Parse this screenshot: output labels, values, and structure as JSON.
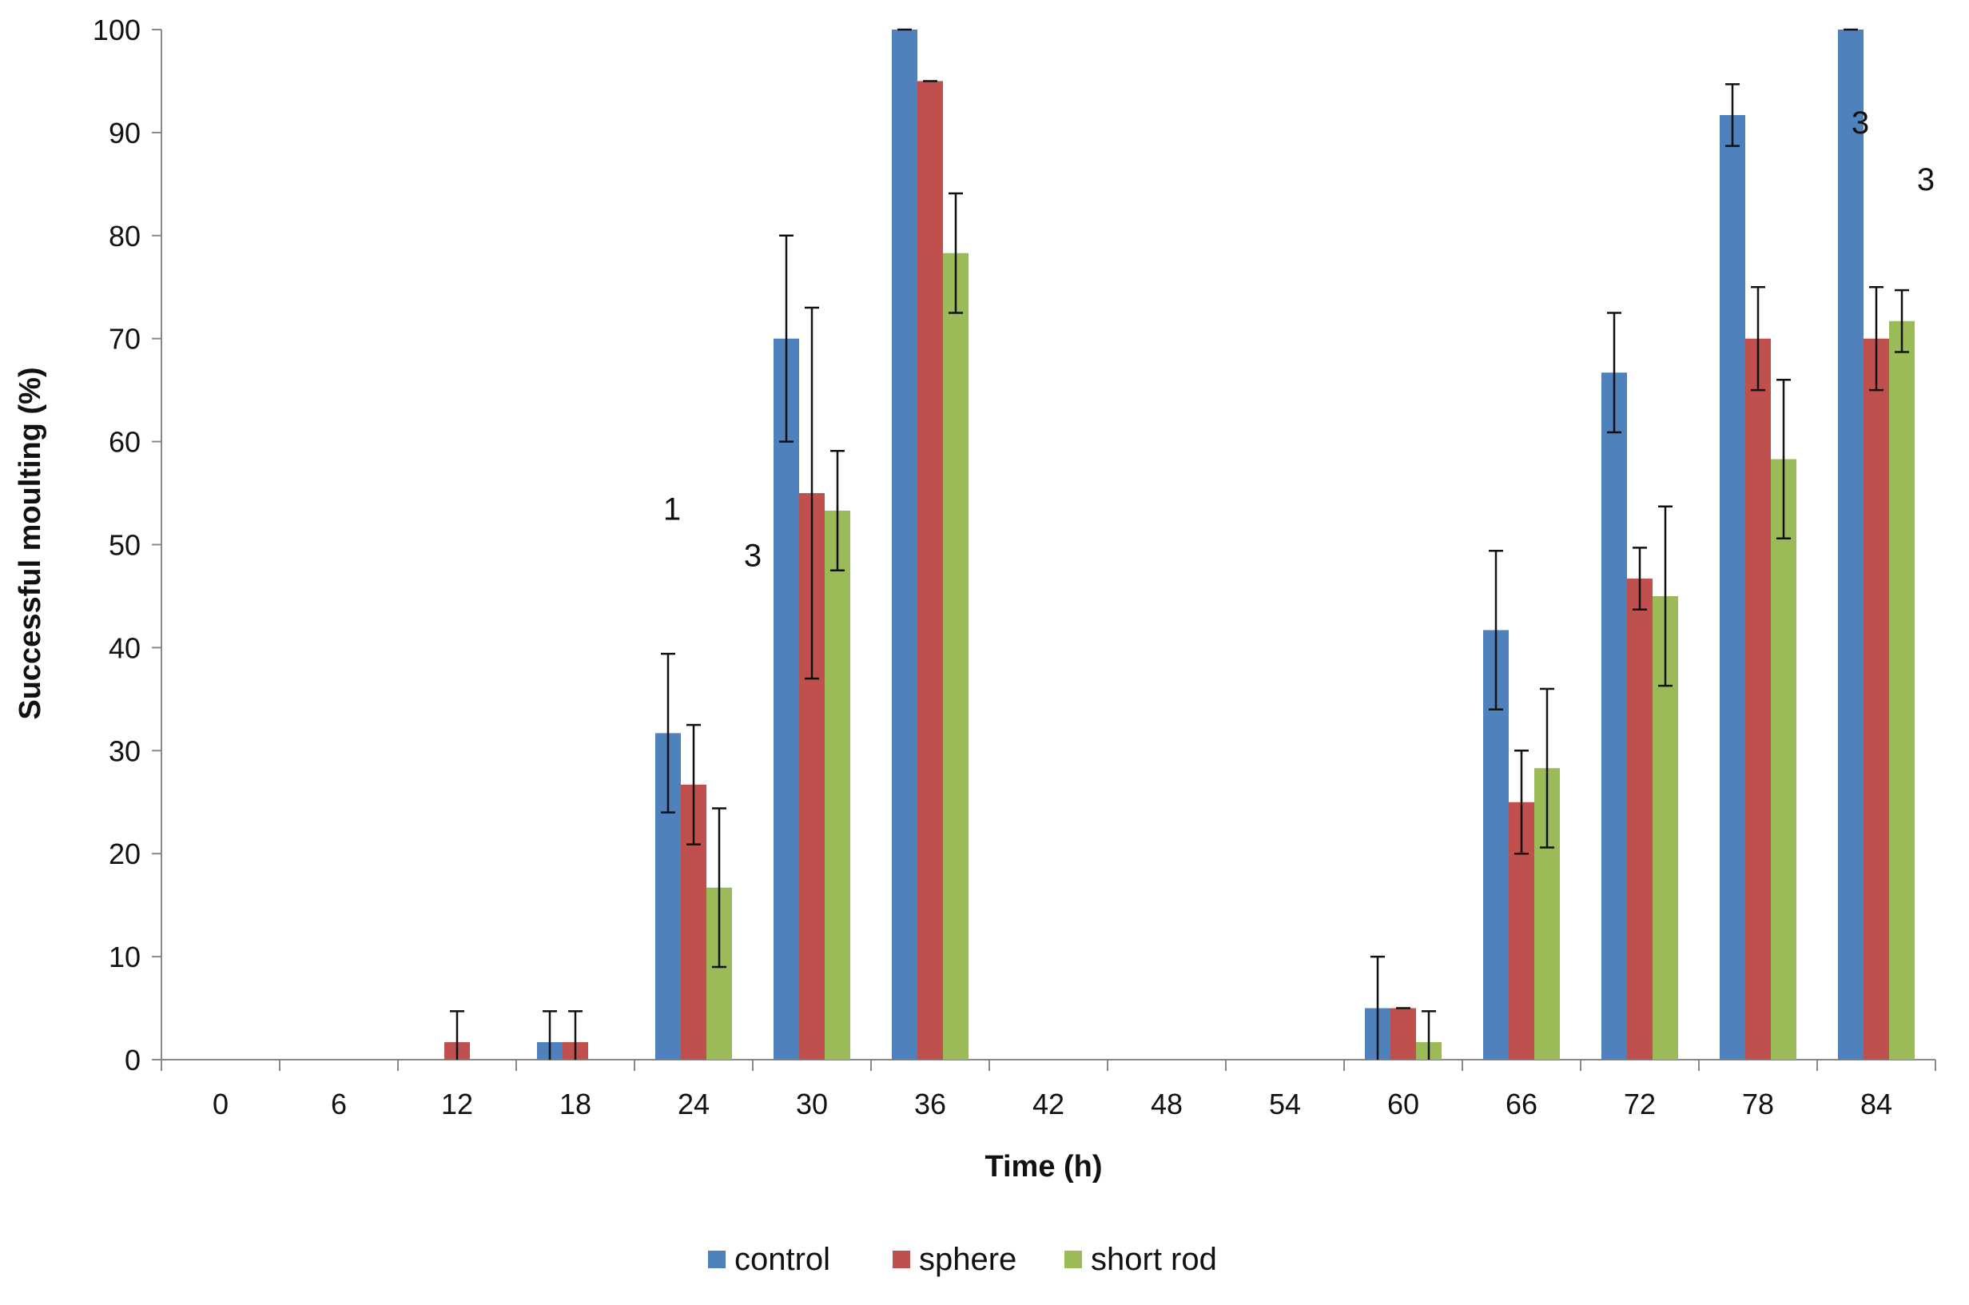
{
  "chart_data": {
    "type": "bar",
    "title": "",
    "xlabel": "Time (h)",
    "ylabel": "Successful moulting (%)",
    "ylim": [
      0,
      100
    ],
    "yticks": [
      "0",
      "10",
      "20",
      "30",
      "40",
      "50",
      "60",
      "70",
      "80",
      "90",
      "100"
    ],
    "categories": [
      "0",
      "6",
      "12",
      "18",
      "24",
      "30",
      "36",
      "42",
      "48",
      "54",
      "60",
      "66",
      "72",
      "78",
      "84"
    ],
    "series": [
      {
        "name": "control",
        "color": "#4f81bd",
        "values": [
          0,
          0,
          0,
          1.7,
          31.7,
          70,
          100,
          0,
          0,
          0,
          5,
          41.7,
          66.7,
          91.7,
          100
        ],
        "errors": [
          0,
          0,
          0,
          3,
          7.7,
          10,
          0,
          0,
          0,
          0,
          5,
          7.7,
          5.8,
          3,
          0
        ]
      },
      {
        "name": "sphere",
        "color": "#c0504d",
        "values": [
          0,
          0,
          1.7,
          1.7,
          26.7,
          55,
          95,
          0,
          0,
          0,
          5,
          25,
          46.7,
          70,
          70
        ],
        "errors": [
          0,
          0,
          3,
          3,
          5.8,
          18,
          0,
          0,
          0,
          0,
          0,
          5,
          3,
          5,
          5
        ]
      },
      {
        "name": "short rod",
        "color": "#9bbb59",
        "values": [
          0,
          0,
          0,
          0,
          16.7,
          53.3,
          78.3,
          0,
          0,
          0,
          1.7,
          28.3,
          45,
          58.3,
          71.7
        ],
        "errors": [
          0,
          0,
          0,
          0,
          7.7,
          5.8,
          5.8,
          0,
          0,
          0,
          3,
          7.7,
          8.7,
          7.7,
          3
        ]
      }
    ],
    "legend_position": "bottom",
    "grid": false,
    "annotations": [
      {
        "text": "1",
        "category": "24",
        "y": 53.5
      },
      {
        "text": "3",
        "category": "24",
        "y": 49
      },
      {
        "text": "3",
        "category": "84",
        "y": 91
      },
      {
        "text": "3",
        "category": "84",
        "y": 85.5
      }
    ]
  }
}
